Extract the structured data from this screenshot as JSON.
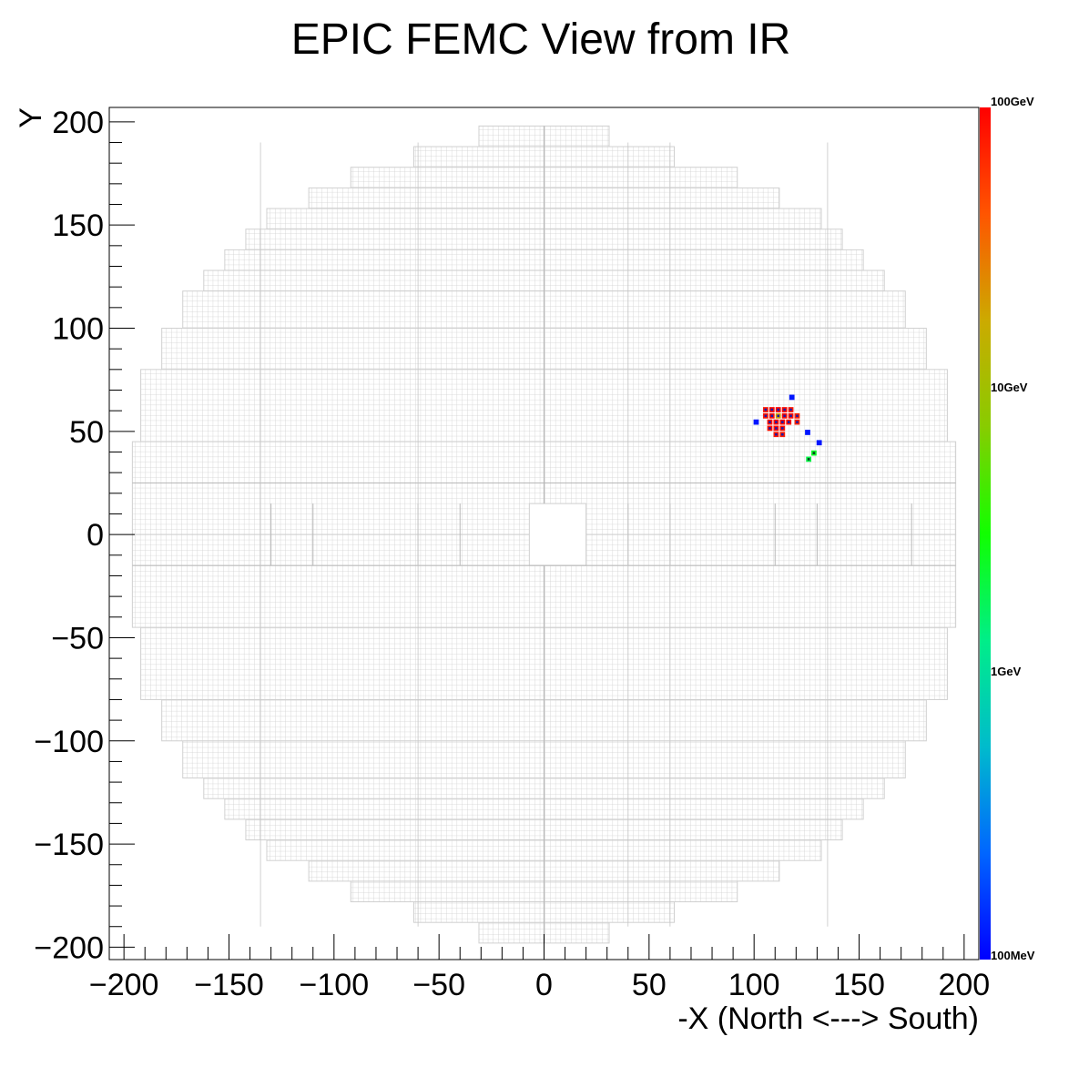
{
  "chart_data": {
    "type": "heatmap",
    "title": "EPIC FEMC View from IR",
    "xlabel": "-X (North <---> South)",
    "ylabel": "Y",
    "xlim": [
      -207,
      207
    ],
    "ylim": [
      -206,
      207
    ],
    "x_ticks": [
      {
        "value": -200,
        "label": "−200"
      },
      {
        "value": -150,
        "label": "−150"
      },
      {
        "value": -100,
        "label": "−100"
      },
      {
        "value": -50,
        "label": "−50"
      },
      {
        "value": 0,
        "label": "0"
      },
      {
        "value": 50,
        "label": "50"
      },
      {
        "value": 100,
        "label": "100"
      },
      {
        "value": 150,
        "label": "150"
      },
      {
        "value": 200,
        "label": "200"
      }
    ],
    "y_ticks": [
      {
        "value": 200,
        "label": "200"
      },
      {
        "value": 150,
        "label": "150"
      },
      {
        "value": 100,
        "label": "100"
      },
      {
        "value": 50,
        "label": "50"
      },
      {
        "value": 0,
        "label": "0"
      },
      {
        "value": -50,
        "label": "−50"
      },
      {
        "value": -100,
        "label": "−100"
      },
      {
        "value": -150,
        "label": "−150"
      },
      {
        "value": -200,
        "label": "−200"
      }
    ],
    "color_scale": {
      "scale": "log",
      "min_gev": 0.1,
      "max_gev": 100,
      "labels": [
        {
          "value": 100,
          "label": "100GeV"
        },
        {
          "value": 10,
          "label": "10GeV"
        },
        {
          "value": 1,
          "label": "1GeV"
        },
        {
          "value": 0.1,
          "label": "100MeV"
        }
      ],
      "colors": [
        "#0000ff",
        "#0066ff",
        "#00bbcc",
        "#00ee88",
        "#11ff00",
        "#88cc00",
        "#ccaa00",
        "#ff5500",
        "#ff0000"
      ]
    },
    "detector_outline": {
      "rows": [
        {
          "y0": 188,
          "y1": 198,
          "xmin": -31,
          "xmax": 31
        },
        {
          "y0": 178,
          "y1": 188,
          "xmin": -62,
          "xmax": 62
        },
        {
          "y0": 168,
          "y1": 178,
          "xmin": -92,
          "xmax": 92
        },
        {
          "y0": 158,
          "y1": 168,
          "xmin": -112,
          "xmax": 112
        },
        {
          "y0": 148,
          "y1": 158,
          "xmin": -132,
          "xmax": 132
        },
        {
          "y0": 138,
          "y1": 148,
          "xmin": -142,
          "xmax": 142
        },
        {
          "y0": 128,
          "y1": 138,
          "xmin": -152,
          "xmax": 152
        },
        {
          "y0": 118,
          "y1": 128,
          "xmin": -162,
          "xmax": 162
        },
        {
          "y0": 100,
          "y1": 118,
          "xmin": -172,
          "xmax": 172
        },
        {
          "y0": 80,
          "y1": 100,
          "xmin": -182,
          "xmax": 182
        },
        {
          "y0": 45,
          "y1": 80,
          "xmin": -192,
          "xmax": 192
        },
        {
          "y0": 0,
          "y1": 45,
          "xmin": -196,
          "xmax": 196
        }
      ],
      "beam_hole": {
        "x0": -7,
        "x1": 20,
        "y0": -15,
        "y1": 15
      },
      "cell_size": 2.5,
      "grid_color": "#d0d0d0"
    },
    "hits": [
      {
        "x": 105.5,
        "y": 60.5,
        "energy_gev": 80
      },
      {
        "x": 108.5,
        "y": 60.5,
        "energy_gev": 90
      },
      {
        "x": 111.5,
        "y": 60.5,
        "energy_gev": 95
      },
      {
        "x": 114.5,
        "y": 60.5,
        "energy_gev": 90
      },
      {
        "x": 117.5,
        "y": 60.5,
        "energy_gev": 80
      },
      {
        "x": 105.5,
        "y": 57.5,
        "energy_gev": 80
      },
      {
        "x": 108.5,
        "y": 57.5,
        "energy_gev": 90
      },
      {
        "x": 111.5,
        "y": 57.5,
        "energy_gev": 20
      },
      {
        "x": 114.5,
        "y": 57.5,
        "energy_gev": 90
      },
      {
        "x": 117.5,
        "y": 57.5,
        "energy_gev": 85
      },
      {
        "x": 120.5,
        "y": 57.5,
        "energy_gev": 70
      },
      {
        "x": 107.5,
        "y": 54.5,
        "energy_gev": 85
      },
      {
        "x": 110.5,
        "y": 54.5,
        "energy_gev": 90
      },
      {
        "x": 113.5,
        "y": 54.5,
        "energy_gev": 90
      },
      {
        "x": 116.5,
        "y": 54.5,
        "energy_gev": 85
      },
      {
        "x": 120.5,
        "y": 54.5,
        "energy_gev": 70
      },
      {
        "x": 107.5,
        "y": 51.5,
        "energy_gev": 85
      },
      {
        "x": 110.5,
        "y": 51.5,
        "energy_gev": 90
      },
      {
        "x": 113.5,
        "y": 51.5,
        "energy_gev": 85
      },
      {
        "x": 110.5,
        "y": 48.5,
        "energy_gev": 80
      },
      {
        "x": 113.5,
        "y": 48.5,
        "energy_gev": 75
      },
      {
        "x": 101,
        "y": 54.5,
        "energy_gev": 0.12
      },
      {
        "x": 118,
        "y": 66.5,
        "energy_gev": 0.12
      },
      {
        "x": 125.5,
        "y": 49.5,
        "energy_gev": 0.12
      },
      {
        "x": 131,
        "y": 44.5,
        "energy_gev": 0.12
      },
      {
        "x": 128.5,
        "y": 39.5,
        "energy_gev": 2.5
      },
      {
        "x": 126,
        "y": 36.5,
        "energy_gev": 2
      }
    ]
  }
}
